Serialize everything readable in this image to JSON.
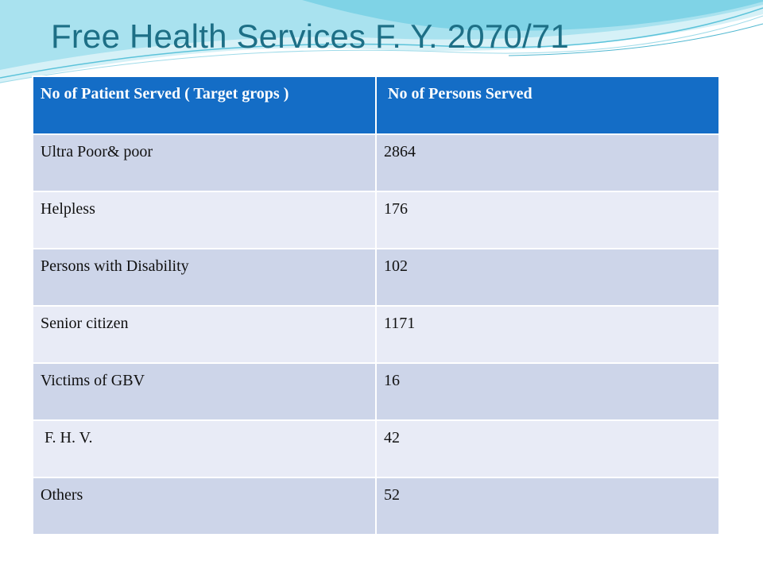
{
  "slide": {
    "title": "Free Health Services F. Y. 2070/71"
  },
  "table": {
    "headers": [
      "No of Patient Served ( Target grops )",
      " No of Persons Served"
    ],
    "rows": [
      {
        "group": "Ultra Poor& poor",
        "count": "2864"
      },
      {
        "group": "Helpless",
        "count": "176"
      },
      {
        "group": "Persons with Disability",
        "count": "102"
      },
      {
        "group": "Senior citizen",
        "count": "1171"
      },
      {
        "group": "Victims of GBV",
        "count": "16"
      },
      {
        "group": " F. H. V.",
        "count": "42"
      },
      {
        "group": "Others",
        "count": "52"
      }
    ]
  },
  "colors": {
    "title": "#1d6f86",
    "header_bg": "#146dc6",
    "row_dark": "#cdd5e9",
    "row_light": "#e8ebf6",
    "swoosh": "#7fd3e6"
  }
}
